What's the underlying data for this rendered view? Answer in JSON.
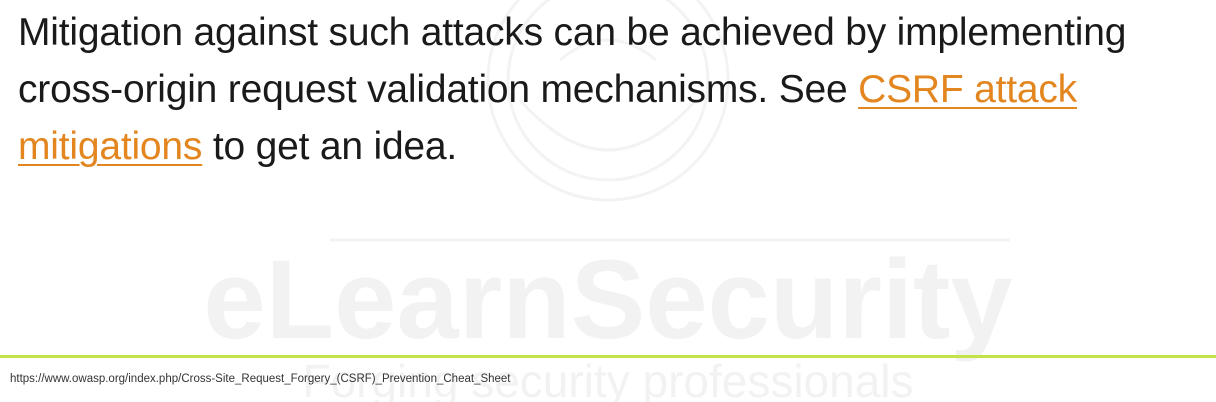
{
  "slide": {
    "text_before_link": "Mitigation against such attacks can be achieved by implementing cross-origin request validation mechanisms. See ",
    "link_text": "CSRF attack mitigations",
    "text_after_link": " to get an idea.",
    "footer_reference": "https://www.owasp.org/index.php/Cross-Site_Request_Forgery_(CSRF)_Prevention_Cheat_Sheet"
  },
  "watermark": {
    "brand": "eLearnSecurity",
    "tagline": "Forging security professionals"
  },
  "colors": {
    "link": "#e3861f",
    "footer_line": "#c6e24a",
    "watermark": "#f2f2f2",
    "text": "#1a1a1a"
  }
}
